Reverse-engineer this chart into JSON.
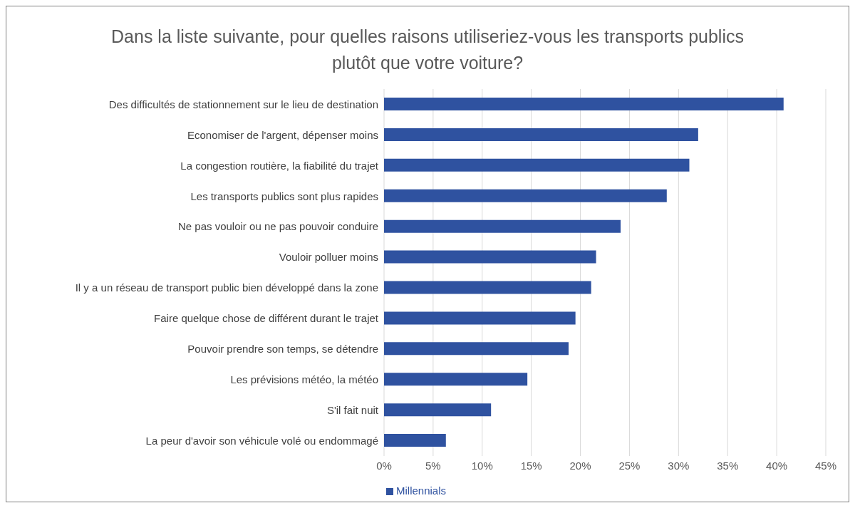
{
  "chart_data": {
    "type": "bar",
    "orientation": "horizontal",
    "title": "Dans la liste suivante, pour quelles raisons utiliseriez-vous les transports publics plutôt que votre voiture?",
    "categories": [
      "Des difficultés de stationnement sur le lieu de destination",
      "Economiser de l'argent, dépenser moins",
      "La congestion routière, la fiabilité du trajet",
      "Les transports publics sont plus rapides",
      "Ne pas vouloir ou ne pas pouvoir conduire",
      "Vouloir polluer moins",
      "Il y a un réseau de transport public bien développé dans la zone",
      "Faire quelque chose de différent durant le trajet",
      "Pouvoir prendre son temps, se détendre",
      "Les prévisions météo, la météo",
      "S'il fait nuit",
      "La peur d'avoir son véhicule volé ou endommagé"
    ],
    "series": [
      {
        "name": "Millennials",
        "color": "#2f52a0",
        "values": [
          40.7,
          32.0,
          31.1,
          28.8,
          24.1,
          21.6,
          21.1,
          19.5,
          18.8,
          14.6,
          10.9,
          6.3
        ]
      }
    ],
    "xlim": [
      0,
      45
    ],
    "xticks": [
      {
        "value": 0,
        "label": "0%"
      },
      {
        "value": 5,
        "label": "5%"
      },
      {
        "value": 10,
        "label": "10%"
      },
      {
        "value": 15,
        "label": "15%"
      },
      {
        "value": 20,
        "label": "20%"
      },
      {
        "value": 25,
        "label": "25%"
      },
      {
        "value": 30,
        "label": "30%"
      },
      {
        "value": 35,
        "label": "35%"
      },
      {
        "value": 40,
        "label": "40%"
      },
      {
        "value": 45,
        "label": "45%"
      }
    ],
    "grid": "x",
    "legend": "bottom"
  }
}
